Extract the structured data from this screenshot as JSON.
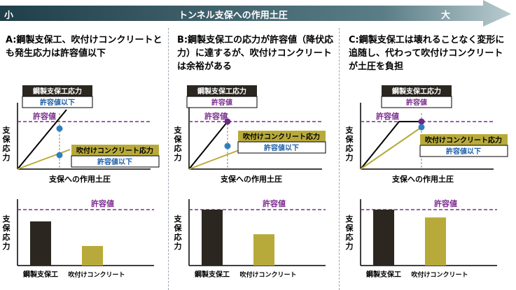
{
  "header": {
    "small_label": "小",
    "center_label": "トンネル支保への作用土圧",
    "large_label": "大"
  },
  "panels": [
    {
      "description": "A:鋼製支保工、吹付けコンクリートとも発生応力は許容値以下",
      "steel_box": {
        "title": "鋼製支保工応力",
        "status": "許容値以下"
      },
      "shotcrete_box": {
        "title": "吹付けコンクリート応力",
        "status": "許容値以下"
      },
      "allowable_label": "許容値",
      "y_axis_label": "支保応力",
      "x_axis_label": "支保への作用土圧",
      "bar_allowable_label": "許容値",
      "bar_y_label": "支保応力",
      "bar_categories": [
        "鋼製支保工",
        "吹付けコンクリート"
      ],
      "bar_values": [
        0.79,
        0.35
      ]
    },
    {
      "description": "B:鋼製支保工の応力が許容値（降伏応力）に達するが、吹付けコンクリートは余裕がある",
      "steel_box": {
        "title": "鋼製支保工応力",
        "status": "許容値"
      },
      "shotcrete_box": {
        "title": "吹付けコンクリート応力",
        "status": "許容値以下"
      },
      "allowable_label": "許容値",
      "y_axis_label": "支保応力",
      "x_axis_label": "支保への作用土圧",
      "bar_allowable_label": "許容値",
      "bar_y_label": "支保応力",
      "bar_categories": [
        "鋼製支保工",
        "吹付けコンクリート"
      ],
      "bar_values": [
        1.0,
        0.56
      ]
    },
    {
      "description": "C:鋼製支保工は壊れることなく変形に追随し、代わって吹付けコンクリートが土圧を負担",
      "steel_box": {
        "title": "鋼製支保工応力",
        "status": "許容値"
      },
      "shotcrete_box": {
        "title": "吹付けコンクリート応力",
        "status": "許容値以下"
      },
      "allowable_label": "許容値",
      "y_axis_label": "支保応力",
      "x_axis_label": "支保への作用土圧",
      "bar_allowable_label": "許容値",
      "bar_y_label": "支保応力",
      "bar_categories": [
        "鋼製支保工",
        "吹付けコンクリート"
      ],
      "bar_values": [
        1.0,
        0.86
      ]
    }
  ],
  "colors": {
    "steel": "#2b2720",
    "shotcrete": "#b8aa3a",
    "allowable": "#7b2d8e",
    "status_text": "#1f5fa8",
    "dot": "#2e7fc0",
    "dot_purple": "#6a2a8a",
    "arrow_dark": "#355a66",
    "arrow_light": "#a9bfc4"
  }
}
